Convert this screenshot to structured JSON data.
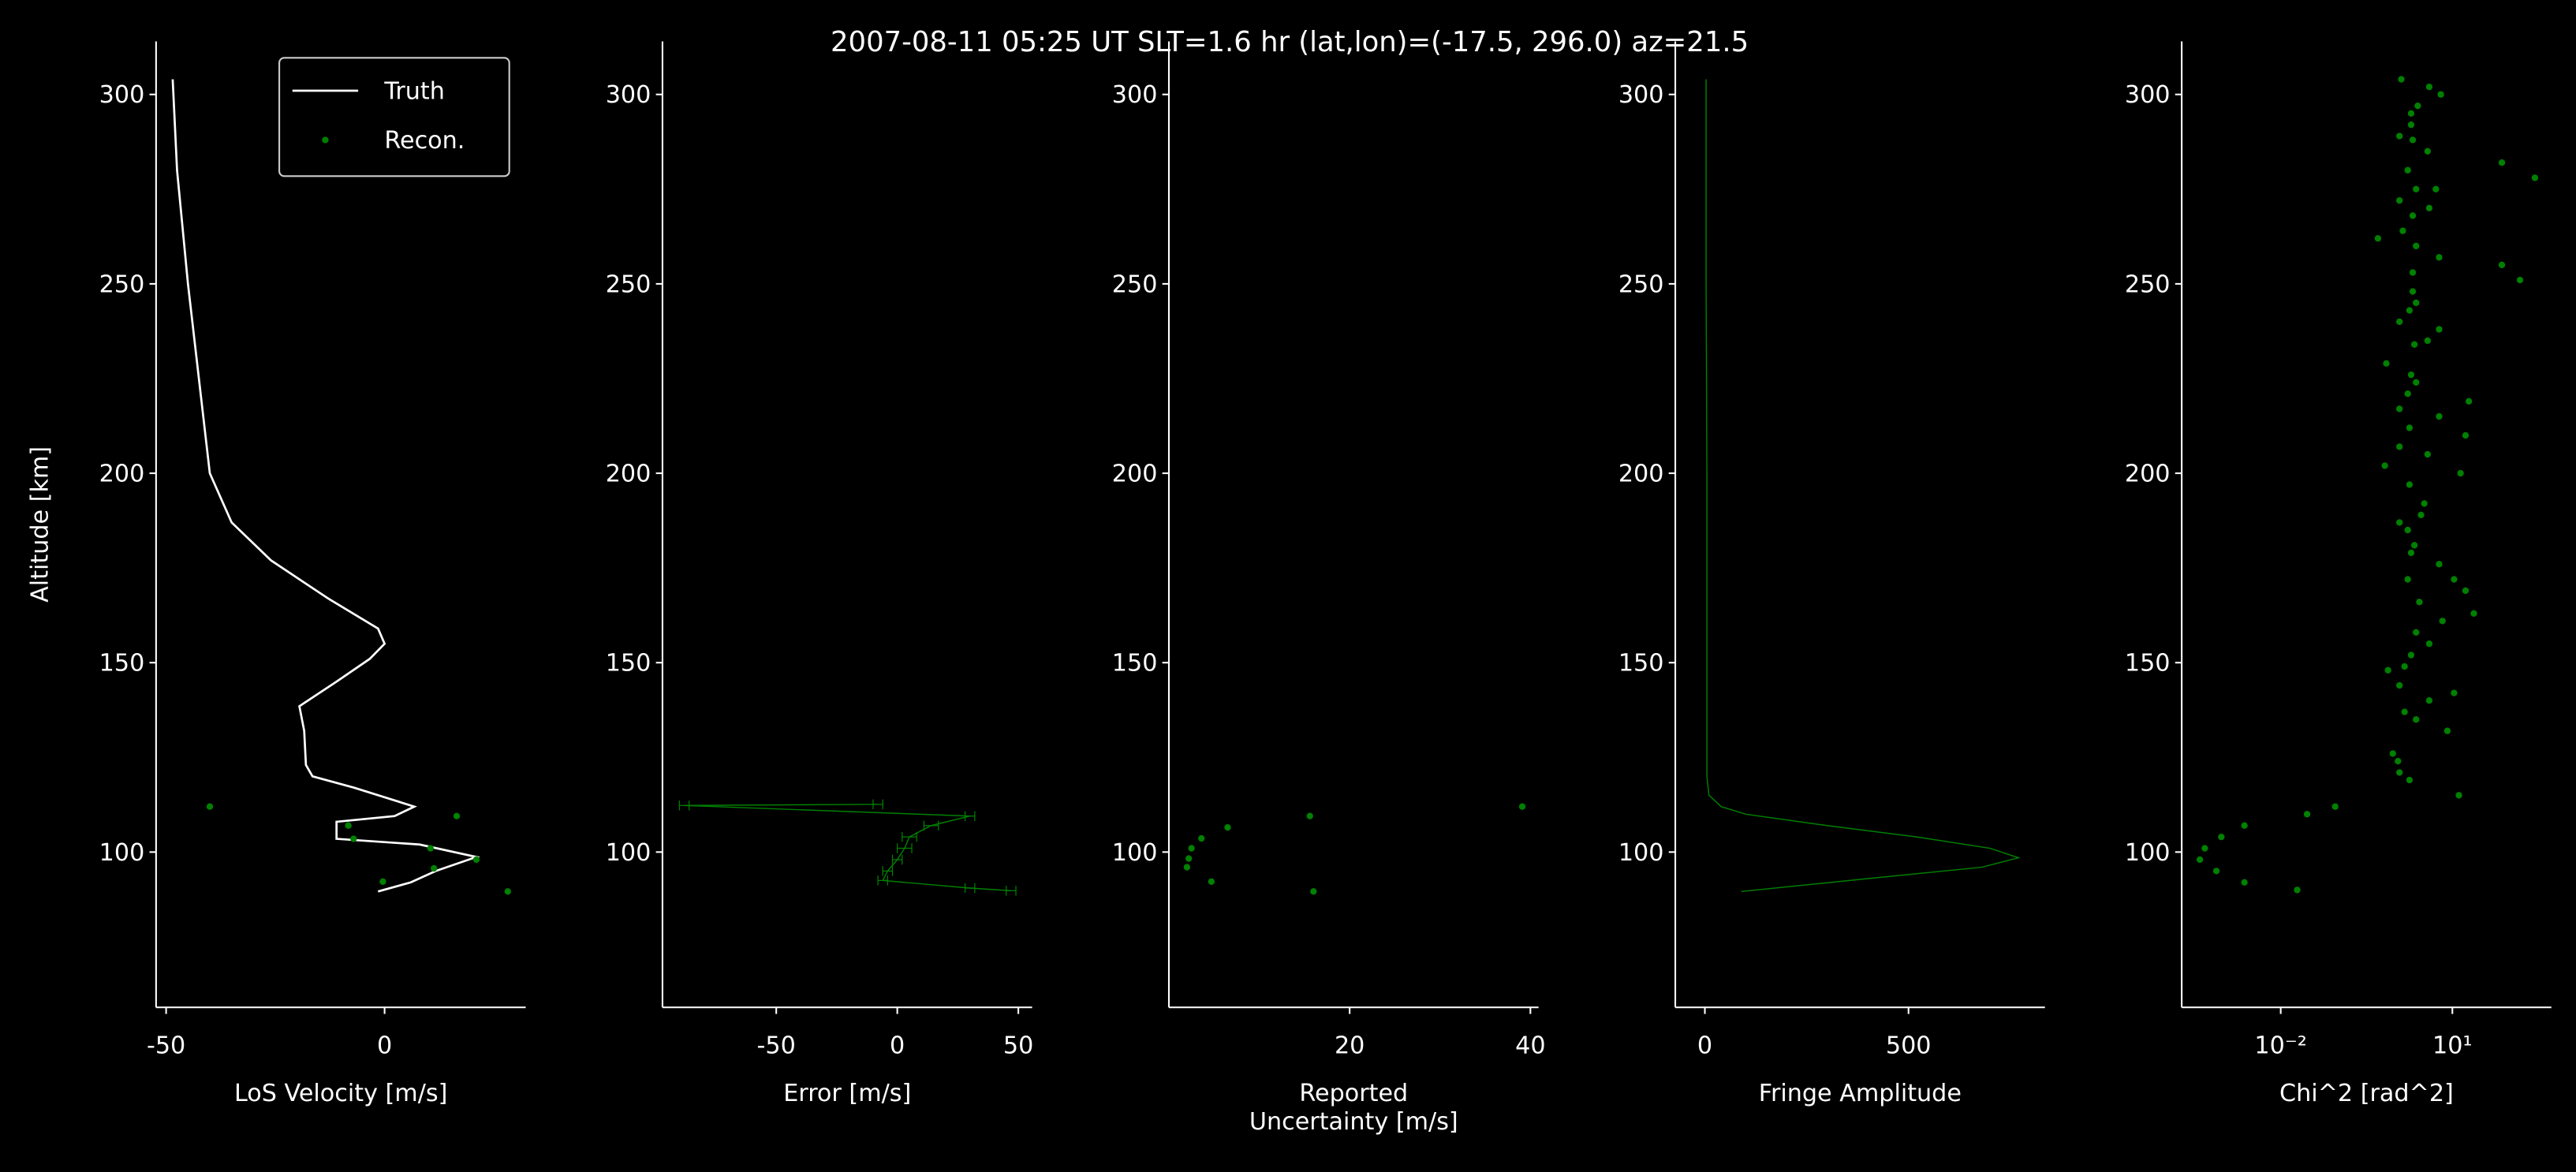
{
  "title": "2007-08-11 05:25 UT     SLT=1.6 hr      (lat,lon)=(-17.5, 296.0)       az=21.5",
  "chart_data": [
    {
      "type": "line",
      "xlabel": "LoS Velocity [m/s]",
      "ylabel": "Altitude [km]",
      "xlim": [
        -52.3,
        32.3
      ],
      "ylim": [
        59,
        314
      ],
      "xticks": [
        -50,
        0
      ],
      "yticks": [
        100,
        150,
        200,
        250,
        300
      ],
      "legend": "upper right",
      "series": [
        {
          "name": "Truth",
          "color": "#ffffff",
          "style": "line",
          "x": [
            -48.5,
            -47.5,
            -45,
            -42,
            -40,
            -35,
            -26,
            -13,
            -1.5,
            0,
            -3.4,
            -11,
            -19.5,
            -18.4,
            -18,
            -16.5,
            -7,
            6.8,
            2.3,
            -11,
            -11,
            8,
            21,
            11.7,
            6,
            -1.5
          ],
          "y": [
            304,
            280,
            250,
            220,
            200,
            187,
            177,
            167,
            159,
            155,
            151,
            145,
            138.5,
            132,
            123,
            120,
            117,
            112,
            109.5,
            108,
            103.5,
            102,
            98.7,
            95,
            92,
            89.6
          ]
        },
        {
          "name": "Recon.",
          "color": "#008000",
          "style": "points",
          "x": [
            -40,
            16.5,
            -8.3,
            -7.1,
            10.5,
            21,
            11.3,
            -0.4,
            28.2
          ],
          "y": [
            112,
            109.5,
            107,
            103.5,
            101,
            98,
            95.7,
            92.2,
            89.6
          ]
        }
      ]
    },
    {
      "type": "line",
      "xlabel": "Error [m/s]",
      "xlim": [
        -97,
        55.7
      ],
      "ylim": [
        59,
        314
      ],
      "xticks": [
        -50,
        0,
        50
      ],
      "yticks": [
        100,
        150,
        200,
        250,
        300
      ],
      "series": [
        {
          "color": "#008000",
          "style": "line",
          "x": [
            -8,
            -88,
            30,
            14,
            5,
            3,
            0,
            -4,
            -6,
            30,
            47
          ],
          "y": [
            112.6,
            112.3,
            109.5,
            107,
            104,
            101,
            98,
            95,
            92.5,
            90.5,
            89.8
          ],
          "xerr": [
            2,
            2,
            2,
            3,
            3,
            3,
            2,
            2,
            2,
            2,
            2
          ]
        }
      ]
    },
    {
      "type": "scatter",
      "xlabel": "Reported\nUncertainty [m/s]",
      "xlim": [
        0,
        40.9
      ],
      "ylim": [
        59,
        314
      ],
      "xticks": [
        20,
        40
      ],
      "yticks": [
        100,
        150,
        200,
        250,
        300
      ],
      "series": [
        {
          "color": "#008000",
          "style": "points",
          "x": [
            2.2,
            2.0,
            2.5,
            3.6,
            4.7,
            6.5,
            15.6,
            16,
            39.1
          ],
          "y": [
            98.3,
            96,
            101,
            103.6,
            92.2,
            106.5,
            109.5,
            89.6,
            112
          ]
        }
      ]
    },
    {
      "type": "line",
      "xlabel": "Fringe Amplitude",
      "xlim": [
        -72.6,
        835
      ],
      "ylim": [
        59,
        314
      ],
      "xticks": [
        0,
        500
      ],
      "yticks": [
        100,
        150,
        200,
        250,
        300
      ],
      "series": [
        {
          "color": "#008000",
          "style": "line",
          "x": [
            3,
            3,
            5,
            5,
            5,
            10,
            40,
            100,
            300,
            520,
            700,
            770,
            680,
            400,
            90
          ],
          "y": [
            304,
            250,
            200,
            150,
            120,
            115,
            112,
            110,
            107,
            104,
            101,
            98.5,
            96,
            93,
            89.6
          ]
        }
      ]
    },
    {
      "type": "scatter",
      "xlabel": "Chi^2 [rad^2]",
      "xscale": "log",
      "xlim": [
        0.000186,
        537
      ],
      "ylim": [
        59,
        314
      ],
      "xticks": [
        {
          "value": 0.01,
          "label": "10⁻²"
        },
        {
          "value": 10,
          "label": "10¹"
        }
      ],
      "yticks": [
        100,
        150,
        200,
        250,
        300
      ],
      "series": [
        {
          "color": "#008000",
          "style": "points",
          "x": [
            1.28,
            3.94,
            2.48,
            6.28,
            1.9,
            1.9,
            2.03,
            1.19,
            3.69,
            73.3,
            277,
            1.66,
            2.32,
            5.14,
            1.19,
            3.94,
            2.03,
            0.5,
            1.36,
            2.32,
            5.87,
            2.03,
            73.3,
            152,
            2.03,
            2.32,
            1.78,
            1.19,
            5.87,
            3.69,
            2.17,
            0.7,
            1.9,
            2.32,
            1.66,
            19.4,
            1.19,
            5.87,
            1.78,
            17.0,
            1.19,
            3.69,
            0.66,
            13.9,
            1.78,
            3.23,
            2.83,
            1.19,
            1.66,
            2.17,
            1.9,
            5.87,
            1.66,
            10.7,
            17.0,
            2.65,
            23.7,
            6.71,
            2.32,
            3.94,
            1.9,
            1.46,
            0.75,
            1.19,
            10.7,
            3.94,
            1.46,
            2.32,
            8.18,
            0.91,
            1.12,
            1.19,
            1.78,
            13.0,
            0.0895,
            0.0289,
            0.00232,
            0.000916,
            0.000471,
            0.000386,
            0.00075,
            0.00232,
            0.0194
          ],
          "y": [
            304,
            302,
            297,
            300,
            295,
            292,
            288,
            289,
            285,
            282,
            278,
            280,
            275,
            275,
            272,
            270,
            268,
            262,
            264,
            260,
            257,
            253,
            255,
            251,
            248,
            245,
            243,
            240,
            238,
            235,
            234,
            229,
            226,
            224,
            221,
            219,
            217,
            215,
            212,
            210,
            207,
            205,
            202,
            200,
            197,
            192,
            189,
            187,
            185,
            181,
            179,
            176,
            172,
            172,
            169,
            166,
            163,
            161,
            158,
            155,
            152,
            149,
            148,
            144,
            142,
            140,
            137,
            135,
            132,
            126,
            124,
            121,
            119,
            115,
            112,
            110,
            107,
            104,
            101,
            98,
            95,
            92,
            90
          ]
        }
      ]
    }
  ]
}
